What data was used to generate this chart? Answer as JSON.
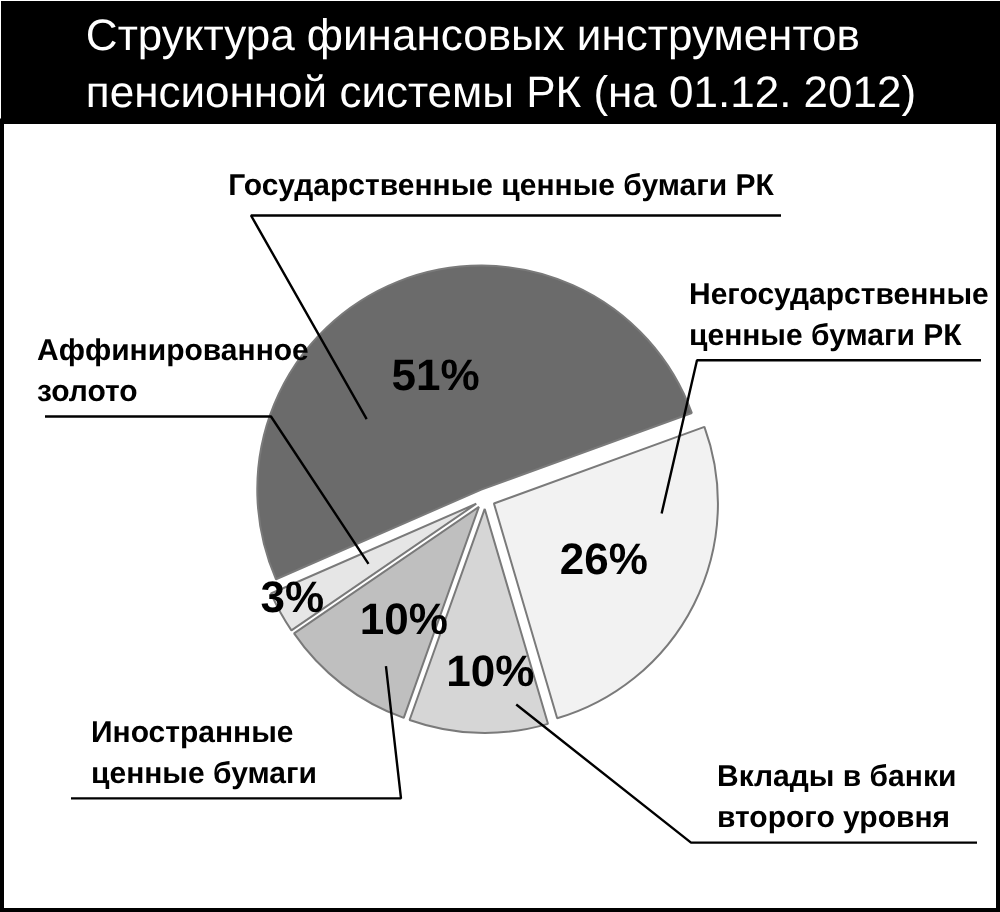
{
  "chart_data": {
    "type": "pie",
    "title": "Структура финансовых инструментов пенсионной системы РК (на 01.12. 2012)",
    "categories": [
      "Государственные ценные бумаги РК",
      "Аффинированное золото",
      "Иностранные ценные бумаги",
      "Вклады в банки второго уровня",
      "Негосударственные ценные бумаги РК"
    ],
    "values": [
      51,
      3,
      10,
      10,
      26
    ],
    "colors": [
      "#6b6b6b",
      "#e6e6e6",
      "#bfbfbf",
      "#d6d6d6",
      "#f2f2f2"
    ],
    "value_labels": [
      "51%",
      "3%",
      "10%",
      "10%",
      "26%"
    ]
  }
}
